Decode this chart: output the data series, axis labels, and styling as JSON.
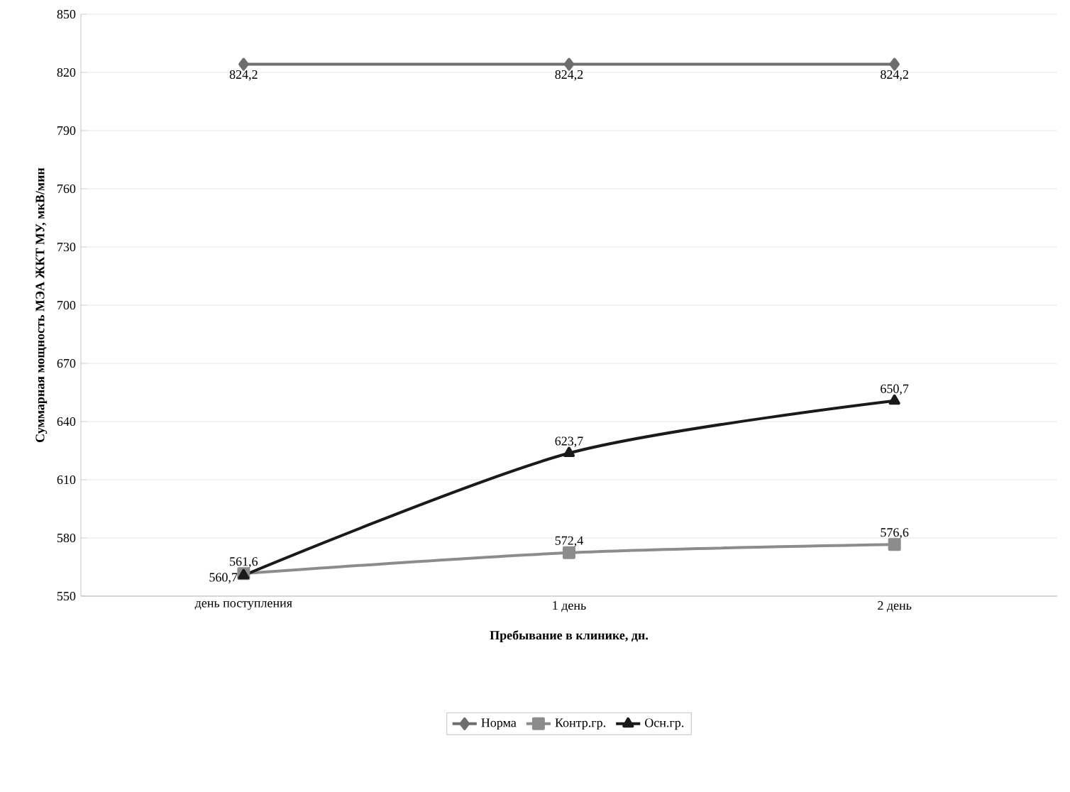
{
  "chart_data": {
    "type": "line",
    "xlabel": "Пребывание в клинике, дн.",
    "ylabel": "Суммарная мощность МЭА ЖКТ МУ, мкВ/мин",
    "categories": [
      "день поступления",
      "1 день",
      "2 день"
    ],
    "series": [
      {
        "name": "Норма",
        "color": "#6e6e6e",
        "marker": "diamond",
        "values": [
          824.2,
          824.2,
          824.2
        ],
        "value_labels": [
          "824,2",
          "824,2",
          "824,2"
        ]
      },
      {
        "name": "Контр.гр.",
        "color": "#8c8c8c",
        "marker": "square",
        "values": [
          561.6,
          572.4,
          576.6
        ],
        "value_labels": [
          "561,6",
          "572,4",
          "576,6"
        ]
      },
      {
        "name": "Осн.гр.",
        "color": "#1a1a1a",
        "marker": "triangle",
        "values": [
          560.7,
          623.7,
          650.7
        ],
        "value_labels": [
          "560,7",
          "623,7",
          "650,7"
        ]
      }
    ],
    "ylim": [
      550,
      850
    ],
    "yticks": [
      550,
      580,
      610,
      640,
      670,
      700,
      730,
      760,
      790,
      820,
      850
    ],
    "grid": "y",
    "legend": "bottom",
    "line_style": "solid"
  }
}
